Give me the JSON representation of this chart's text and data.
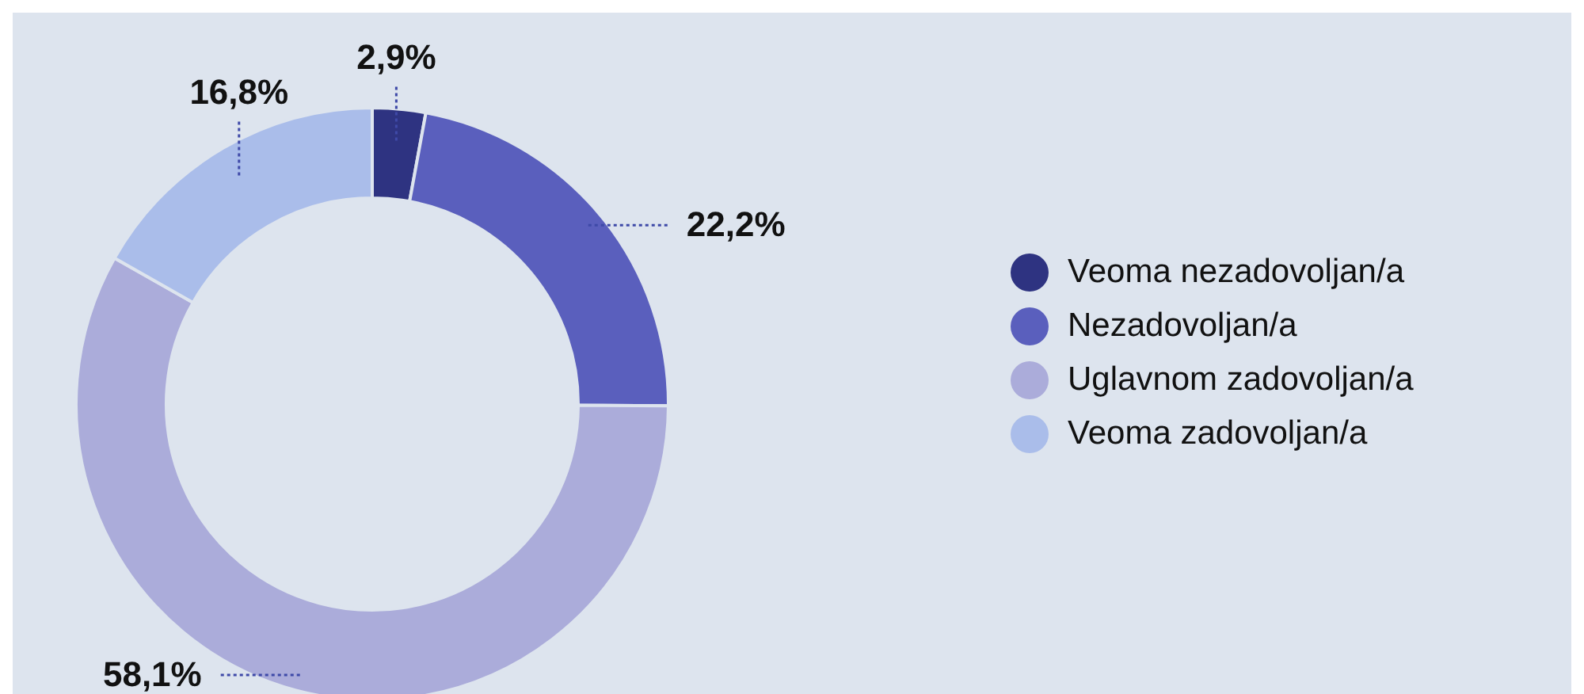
{
  "chart_data": {
    "type": "donut",
    "categories": [
      "Veoma nezadovoljan/a",
      "Nezadovoljan/a",
      "Uglavnom zadovoljan/a",
      "Veoma zadovoljan/a"
    ],
    "values": [
      2.9,
      22.2,
      58.1,
      16.8
    ],
    "value_labels": [
      "2,9%",
      "22,2%",
      "58,1%",
      "16,8%"
    ],
    "colors": [
      "#2e3381",
      "#5a5fbd",
      "#abacda",
      "#aabdea"
    ],
    "legend": "right"
  }
}
